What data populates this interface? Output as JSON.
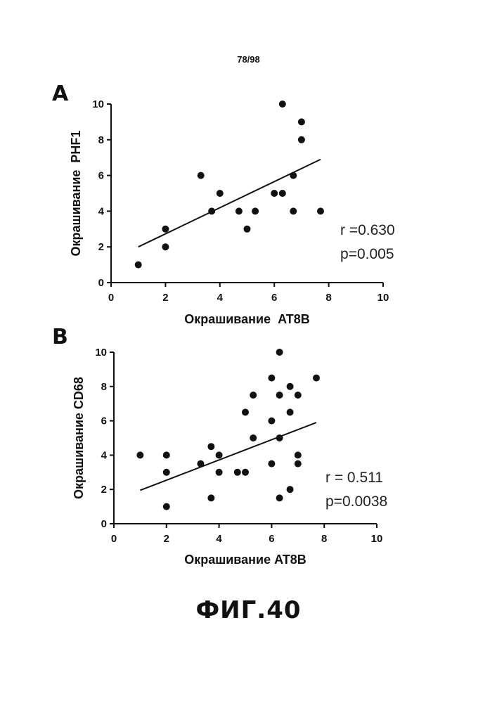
{
  "page_number": "78/98",
  "figure_label": "ФИГ.40",
  "chart_data": [
    {
      "panel": "A",
      "type": "scatter",
      "xlabel": "Окрашивание  AT8B",
      "ylabel": "Окрашивание  PHF1",
      "xlim": [
        0,
        10
      ],
      "ylim": [
        0,
        10
      ],
      "xticks": [
        0,
        2,
        4,
        6,
        8,
        10
      ],
      "yticks": [
        0,
        2,
        4,
        6,
        8,
        10
      ],
      "points": [
        {
          "x": 1.0,
          "y": 1.0
        },
        {
          "x": 2.0,
          "y": 2.0
        },
        {
          "x": 2.0,
          "y": 3.0
        },
        {
          "x": 3.3,
          "y": 6.0
        },
        {
          "x": 3.7,
          "y": 4.0
        },
        {
          "x": 4.0,
          "y": 5.0
        },
        {
          "x": 4.7,
          "y": 4.0
        },
        {
          "x": 5.0,
          "y": 3.0
        },
        {
          "x": 5.3,
          "y": 4.0
        },
        {
          "x": 6.0,
          "y": 5.0
        },
        {
          "x": 6.3,
          "y": 5.0
        },
        {
          "x": 6.3,
          "y": 10.0
        },
        {
          "x": 6.7,
          "y": 6.0
        },
        {
          "x": 6.7,
          "y": 4.0
        },
        {
          "x": 7.0,
          "y": 9.0
        },
        {
          "x": 7.0,
          "y": 8.0
        },
        {
          "x": 7.7,
          "y": 4.0
        }
      ],
      "fit_line": {
        "x": [
          1.0,
          7.7
        ],
        "y": [
          2.0,
          6.9
        ]
      },
      "stats": [
        "r =0.630",
        "p=0.005"
      ],
      "grid": false
    },
    {
      "panel": "B",
      "type": "scatter",
      "xlabel": "Окрашивание AT8B",
      "ylabel": "Окрашивание CD68",
      "xlim": [
        0,
        10
      ],
      "ylim": [
        0,
        10
      ],
      "xticks": [
        0,
        2,
        4,
        6,
        8,
        10
      ],
      "yticks": [
        0,
        2,
        4,
        6,
        8,
        10
      ],
      "points": [
        {
          "x": 1.0,
          "y": 4.0
        },
        {
          "x": 2.0,
          "y": 4.0
        },
        {
          "x": 2.0,
          "y": 3.0
        },
        {
          "x": 2.0,
          "y": 1.0
        },
        {
          "x": 3.3,
          "y": 3.5
        },
        {
          "x": 3.7,
          "y": 4.5
        },
        {
          "x": 3.7,
          "y": 1.5
        },
        {
          "x": 4.0,
          "y": 4.0
        },
        {
          "x": 4.0,
          "y": 3.0
        },
        {
          "x": 4.7,
          "y": 3.0
        },
        {
          "x": 5.0,
          "y": 3.0
        },
        {
          "x": 5.0,
          "y": 6.5
        },
        {
          "x": 5.3,
          "y": 7.5
        },
        {
          "x": 5.3,
          "y": 5.0
        },
        {
          "x": 6.0,
          "y": 8.5
        },
        {
          "x": 6.0,
          "y": 6.0
        },
        {
          "x": 6.0,
          "y": 3.5
        },
        {
          "x": 6.3,
          "y": 10.0
        },
        {
          "x": 6.3,
          "y": 7.5
        },
        {
          "x": 6.3,
          "y": 5.0
        },
        {
          "x": 6.3,
          "y": 1.5
        },
        {
          "x": 6.7,
          "y": 8.0
        },
        {
          "x": 6.7,
          "y": 6.5
        },
        {
          "x": 6.7,
          "y": 2.0
        },
        {
          "x": 7.0,
          "y": 7.5
        },
        {
          "x": 7.0,
          "y": 4.0
        },
        {
          "x": 7.0,
          "y": 3.5
        },
        {
          "x": 7.7,
          "y": 8.5
        }
      ],
      "fit_line": {
        "x": [
          1.0,
          7.7
        ],
        "y": [
          1.95,
          5.9
        ]
      },
      "stats": [
        "r = 0.511",
        "p=0.0038"
      ],
      "grid": false
    }
  ]
}
